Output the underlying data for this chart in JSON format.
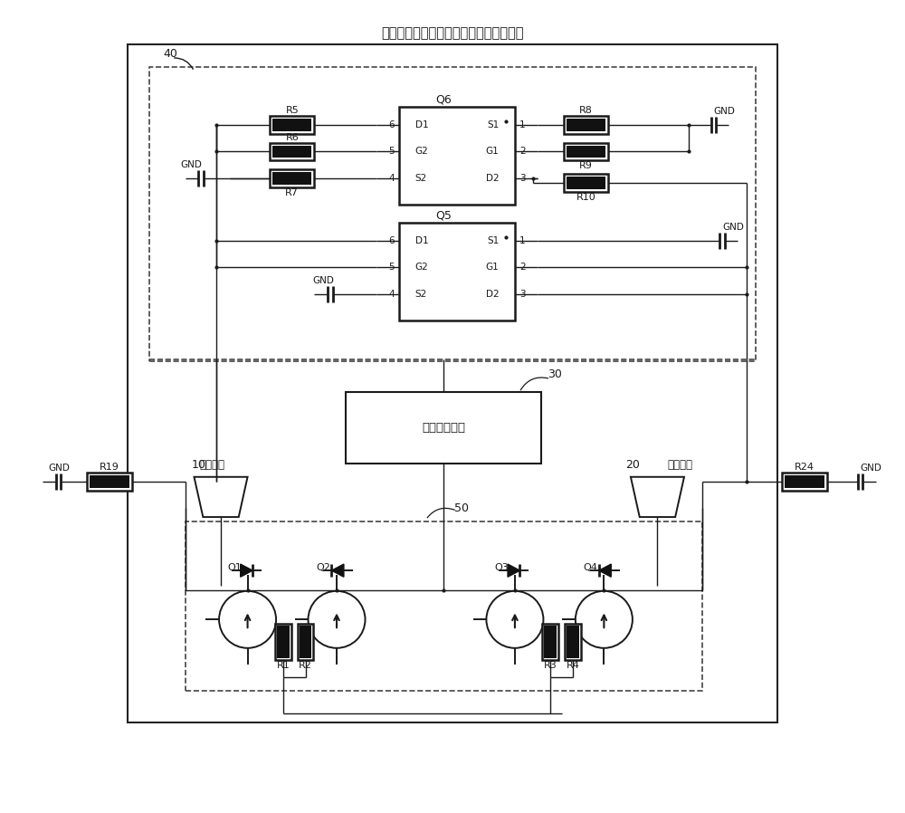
{
  "title": "盲插电路、多接口的电子设备及供电系统",
  "bg_color": "#ffffff",
  "line_color": "#1a1a1a",
  "text_color": "#1a1a1a",
  "dashed_color": "#555555",
  "power_module_label": "设备电源模块",
  "interface1_label": "第一接口",
  "interface2_label": "第二接口",
  "title_fontsize": 11,
  "label_fontsize": 9,
  "small_fontsize": 8
}
